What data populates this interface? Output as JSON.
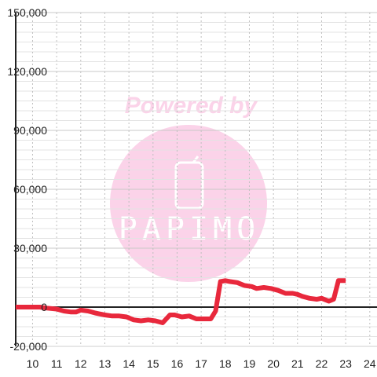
{
  "chart_data": {
    "type": "line",
    "x": [
      9.3,
      9.6,
      10.0,
      10.3,
      10.6,
      11.0,
      11.3,
      11.6,
      11.8,
      12.0,
      12.3,
      12.6,
      13.0,
      13.3,
      13.6,
      13.9,
      14.2,
      14.5,
      14.8,
      15.1,
      15.4,
      15.7,
      15.9,
      16.2,
      16.5,
      16.8,
      17.1,
      17.4,
      17.6,
      17.8,
      18.0,
      18.2,
      18.5,
      18.8,
      19.1,
      19.3,
      19.6,
      19.9,
      20.2,
      20.5,
      20.8,
      21.0,
      21.2,
      21.5,
      21.8,
      22.0,
      22.3,
      22.5,
      22.7,
      23.0
    ],
    "series": [
      {
        "values": [
          0,
          0,
          0,
          0,
          -500,
          -1000,
          -2000,
          -2500,
          -2500,
          -1500,
          -2000,
          -3000,
          -4000,
          -4500,
          -4500,
          -5000,
          -6500,
          -7000,
          -6500,
          -7000,
          -8000,
          -4000,
          -4000,
          -5000,
          -4500,
          -6000,
          -6000,
          -6000,
          -2000,
          13000,
          13500,
          13000,
          12500,
          11000,
          10500,
          9500,
          10000,
          9500,
          8500,
          7000,
          7000,
          6500,
          5500,
          4500,
          4000,
          4500,
          3000,
          4000,
          13500,
          13500
        ]
      }
    ],
    "xlim": [
      9.3,
      24.3
    ],
    "ylim": [
      -20000,
      150000
    ],
    "xticks": [
      "10",
      "11",
      "12",
      "13",
      "14",
      "15",
      "16",
      "17",
      "18",
      "19",
      "20",
      "21",
      "22",
      "23",
      "24"
    ],
    "yticks": [
      "150,000",
      "120,000",
      "90,000",
      "60,000",
      "30,000",
      "0",
      "-20,000"
    ],
    "grid": true,
    "colors": {
      "line": "#e8283c",
      "zero_line": "#222222",
      "watermark": "#fbd3e9"
    }
  },
  "watermark": {
    "caption": "Powered by",
    "logo": "PAPIMO",
    "icon": "phone-icon"
  }
}
